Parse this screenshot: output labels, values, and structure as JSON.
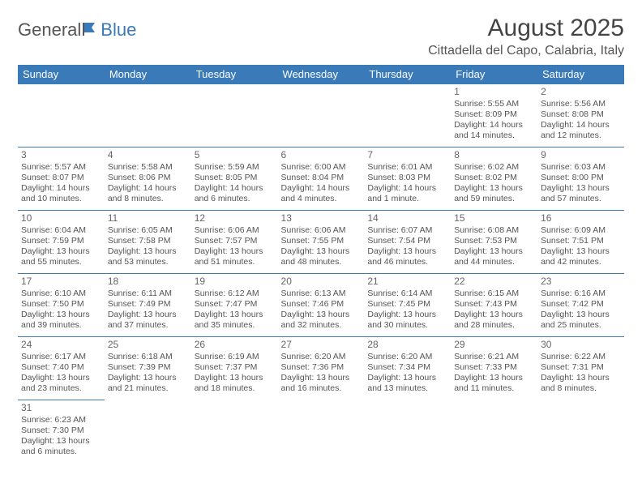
{
  "brand": {
    "part1": "General",
    "part2": "Blue"
  },
  "title": "August 2025",
  "location": "Cittadella del Capo, Calabria, Italy",
  "colors": {
    "header_bg": "#3a7ab8",
    "header_fg": "#ffffff",
    "text": "#555555",
    "border": "#3a7ab8",
    "page_bg": "#ffffff"
  },
  "weekdays": [
    "Sunday",
    "Monday",
    "Tuesday",
    "Wednesday",
    "Thursday",
    "Friday",
    "Saturday"
  ],
  "weeks": [
    [
      null,
      null,
      null,
      null,
      null,
      {
        "n": "1",
        "sr": "Sunrise: 5:55 AM",
        "ss": "Sunset: 8:09 PM",
        "d1": "Daylight: 14 hours",
        "d2": "and 14 minutes."
      },
      {
        "n": "2",
        "sr": "Sunrise: 5:56 AM",
        "ss": "Sunset: 8:08 PM",
        "d1": "Daylight: 14 hours",
        "d2": "and 12 minutes."
      }
    ],
    [
      {
        "n": "3",
        "sr": "Sunrise: 5:57 AM",
        "ss": "Sunset: 8:07 PM",
        "d1": "Daylight: 14 hours",
        "d2": "and 10 minutes."
      },
      {
        "n": "4",
        "sr": "Sunrise: 5:58 AM",
        "ss": "Sunset: 8:06 PM",
        "d1": "Daylight: 14 hours",
        "d2": "and 8 minutes."
      },
      {
        "n": "5",
        "sr": "Sunrise: 5:59 AM",
        "ss": "Sunset: 8:05 PM",
        "d1": "Daylight: 14 hours",
        "d2": "and 6 minutes."
      },
      {
        "n": "6",
        "sr": "Sunrise: 6:00 AM",
        "ss": "Sunset: 8:04 PM",
        "d1": "Daylight: 14 hours",
        "d2": "and 4 minutes."
      },
      {
        "n": "7",
        "sr": "Sunrise: 6:01 AM",
        "ss": "Sunset: 8:03 PM",
        "d1": "Daylight: 14 hours",
        "d2": "and 1 minute."
      },
      {
        "n": "8",
        "sr": "Sunrise: 6:02 AM",
        "ss": "Sunset: 8:02 PM",
        "d1": "Daylight: 13 hours",
        "d2": "and 59 minutes."
      },
      {
        "n": "9",
        "sr": "Sunrise: 6:03 AM",
        "ss": "Sunset: 8:00 PM",
        "d1": "Daylight: 13 hours",
        "d2": "and 57 minutes."
      }
    ],
    [
      {
        "n": "10",
        "sr": "Sunrise: 6:04 AM",
        "ss": "Sunset: 7:59 PM",
        "d1": "Daylight: 13 hours",
        "d2": "and 55 minutes."
      },
      {
        "n": "11",
        "sr": "Sunrise: 6:05 AM",
        "ss": "Sunset: 7:58 PM",
        "d1": "Daylight: 13 hours",
        "d2": "and 53 minutes."
      },
      {
        "n": "12",
        "sr": "Sunrise: 6:06 AM",
        "ss": "Sunset: 7:57 PM",
        "d1": "Daylight: 13 hours",
        "d2": "and 51 minutes."
      },
      {
        "n": "13",
        "sr": "Sunrise: 6:06 AM",
        "ss": "Sunset: 7:55 PM",
        "d1": "Daylight: 13 hours",
        "d2": "and 48 minutes."
      },
      {
        "n": "14",
        "sr": "Sunrise: 6:07 AM",
        "ss": "Sunset: 7:54 PM",
        "d1": "Daylight: 13 hours",
        "d2": "and 46 minutes."
      },
      {
        "n": "15",
        "sr": "Sunrise: 6:08 AM",
        "ss": "Sunset: 7:53 PM",
        "d1": "Daylight: 13 hours",
        "d2": "and 44 minutes."
      },
      {
        "n": "16",
        "sr": "Sunrise: 6:09 AM",
        "ss": "Sunset: 7:51 PM",
        "d1": "Daylight: 13 hours",
        "d2": "and 42 minutes."
      }
    ],
    [
      {
        "n": "17",
        "sr": "Sunrise: 6:10 AM",
        "ss": "Sunset: 7:50 PM",
        "d1": "Daylight: 13 hours",
        "d2": "and 39 minutes."
      },
      {
        "n": "18",
        "sr": "Sunrise: 6:11 AM",
        "ss": "Sunset: 7:49 PM",
        "d1": "Daylight: 13 hours",
        "d2": "and 37 minutes."
      },
      {
        "n": "19",
        "sr": "Sunrise: 6:12 AM",
        "ss": "Sunset: 7:47 PM",
        "d1": "Daylight: 13 hours",
        "d2": "and 35 minutes."
      },
      {
        "n": "20",
        "sr": "Sunrise: 6:13 AM",
        "ss": "Sunset: 7:46 PM",
        "d1": "Daylight: 13 hours",
        "d2": "and 32 minutes."
      },
      {
        "n": "21",
        "sr": "Sunrise: 6:14 AM",
        "ss": "Sunset: 7:45 PM",
        "d1": "Daylight: 13 hours",
        "d2": "and 30 minutes."
      },
      {
        "n": "22",
        "sr": "Sunrise: 6:15 AM",
        "ss": "Sunset: 7:43 PM",
        "d1": "Daylight: 13 hours",
        "d2": "and 28 minutes."
      },
      {
        "n": "23",
        "sr": "Sunrise: 6:16 AM",
        "ss": "Sunset: 7:42 PM",
        "d1": "Daylight: 13 hours",
        "d2": "and 25 minutes."
      }
    ],
    [
      {
        "n": "24",
        "sr": "Sunrise: 6:17 AM",
        "ss": "Sunset: 7:40 PM",
        "d1": "Daylight: 13 hours",
        "d2": "and 23 minutes."
      },
      {
        "n": "25",
        "sr": "Sunrise: 6:18 AM",
        "ss": "Sunset: 7:39 PM",
        "d1": "Daylight: 13 hours",
        "d2": "and 21 minutes."
      },
      {
        "n": "26",
        "sr": "Sunrise: 6:19 AM",
        "ss": "Sunset: 7:37 PM",
        "d1": "Daylight: 13 hours",
        "d2": "and 18 minutes."
      },
      {
        "n": "27",
        "sr": "Sunrise: 6:20 AM",
        "ss": "Sunset: 7:36 PM",
        "d1": "Daylight: 13 hours",
        "d2": "and 16 minutes."
      },
      {
        "n": "28",
        "sr": "Sunrise: 6:20 AM",
        "ss": "Sunset: 7:34 PM",
        "d1": "Daylight: 13 hours",
        "d2": "and 13 minutes."
      },
      {
        "n": "29",
        "sr": "Sunrise: 6:21 AM",
        "ss": "Sunset: 7:33 PM",
        "d1": "Daylight: 13 hours",
        "d2": "and 11 minutes."
      },
      {
        "n": "30",
        "sr": "Sunrise: 6:22 AM",
        "ss": "Sunset: 7:31 PM",
        "d1": "Daylight: 13 hours",
        "d2": "and 8 minutes."
      }
    ],
    [
      {
        "n": "31",
        "sr": "Sunrise: 6:23 AM",
        "ss": "Sunset: 7:30 PM",
        "d1": "Daylight: 13 hours",
        "d2": "and 6 minutes."
      },
      null,
      null,
      null,
      null,
      null,
      null
    ]
  ]
}
